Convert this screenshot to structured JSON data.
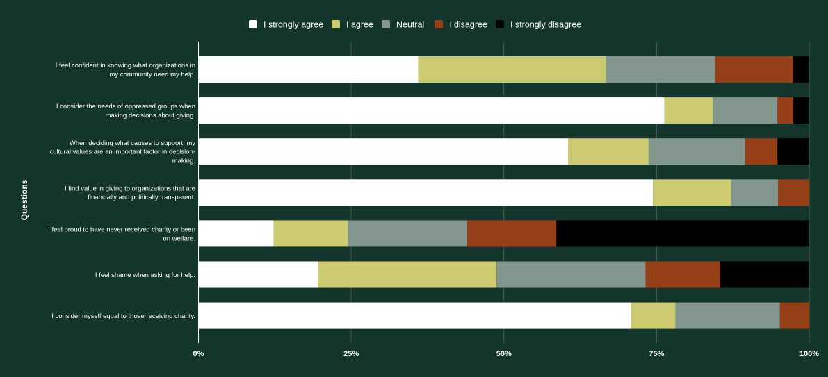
{
  "chart_data": {
    "type": "bar",
    "orientation": "horizontal",
    "stacked": "percent",
    "ylabel": "Questions",
    "xlabel": "",
    "xlim": [
      0,
      100
    ],
    "xticks": [
      "0%",
      "25%",
      "50%",
      "75%",
      "100%"
    ],
    "grid": true,
    "legend_position": "top-center",
    "categories": [
      [
        "I feel confident in knowing what organizations in",
        "my community need my help."
      ],
      [
        "I consider the needs of oppressed groups when",
        "making decisions about giving."
      ],
      [
        "When deciding what causes to support, my",
        "cultural values are an important factor in decision-",
        "making."
      ],
      [
        "I find value in giving to organizations that are",
        "financially and politically transparent."
      ],
      [
        "I feel proud to have never received charity or been",
        "on welfare."
      ],
      [
        "I feel shame when asking for help."
      ],
      [
        "I consider myself equal to those receiving charity."
      ]
    ],
    "series": [
      {
        "name": "I strongly agree",
        "color": "#ffffff",
        "values": [
          36.0,
          76.3,
          60.5,
          74.4,
          12.3,
          19.6,
          70.8
        ]
      },
      {
        "name": "I agree",
        "color": "#cccb71",
        "values": [
          30.7,
          7.9,
          13.2,
          12.8,
          12.2,
          29.2,
          7.3
        ]
      },
      {
        "name": "Neutral",
        "color": "#83968d",
        "values": [
          17.9,
          10.6,
          15.8,
          7.7,
          19.5,
          24.4,
          17.1
        ]
      },
      {
        "name": "I disagree",
        "color": "#953f17",
        "values": [
          12.8,
          2.6,
          5.3,
          5.1,
          14.6,
          12.2,
          4.8
        ]
      },
      {
        "name": "I strongly disagree",
        "color": "#000000",
        "values": [
          2.6,
          2.6,
          5.2,
          0,
          41.4,
          14.6,
          0
        ]
      }
    ]
  }
}
